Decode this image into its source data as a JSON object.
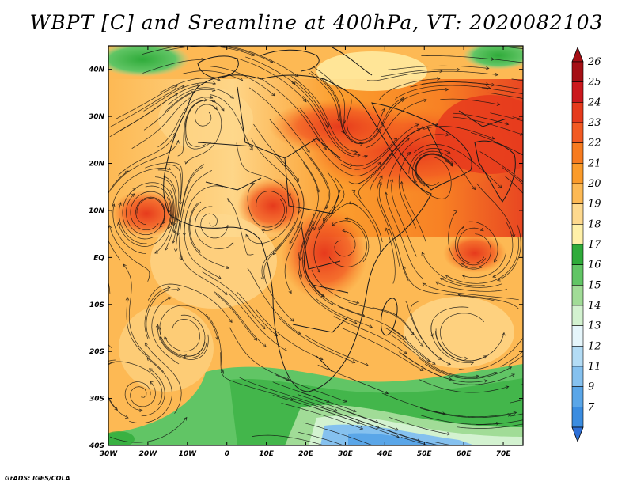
{
  "title": "WBPT [C] and Sreamline at 400hPa, VT: 2020082103",
  "credit": "GrADS: IGES/COLA",
  "map": {
    "variable": "Wet-bulb potential temperature",
    "level": "400hPa",
    "overlay": "Streamlines",
    "lon_range": [
      -30,
      75
    ],
    "lat_range": [
      -40,
      45
    ],
    "lat_ticks": [
      {
        "value": 40,
        "label": "40N"
      },
      {
        "value": 30,
        "label": "30N"
      },
      {
        "value": 20,
        "label": "20N"
      },
      {
        "value": 10,
        "label": "10N"
      },
      {
        "value": 0,
        "label": "EQ"
      },
      {
        "value": -10,
        "label": "10S"
      },
      {
        "value": -20,
        "label": "20S"
      },
      {
        "value": -30,
        "label": "30S"
      },
      {
        "value": -40,
        "label": "40S"
      }
    ],
    "lon_ticks": [
      {
        "value": -30,
        "label": "30W"
      },
      {
        "value": -20,
        "label": "20W"
      },
      {
        "value": -10,
        "label": "10W"
      },
      {
        "value": 0,
        "label": "0"
      },
      {
        "value": 10,
        "label": "10E"
      },
      {
        "value": 20,
        "label": "20E"
      },
      {
        "value": 30,
        "label": "30E"
      },
      {
        "value": 40,
        "label": "40E"
      },
      {
        "value": 50,
        "label": "50E"
      },
      {
        "value": 60,
        "label": "60E"
      },
      {
        "value": 70,
        "label": "70E"
      }
    ]
  },
  "colorbar": {
    "levels": [
      {
        "label": "26",
        "color": "#a50f15"
      },
      {
        "label": "25",
        "color": "#cb181d"
      },
      {
        "label": "24",
        "color": "#e63a1c"
      },
      {
        "label": "23",
        "color": "#f25a22"
      },
      {
        "label": "22",
        "color": "#f77b1f"
      },
      {
        "label": "21",
        "color": "#fb9b2a"
      },
      {
        "label": "20",
        "color": "#fdb954"
      },
      {
        "label": "19",
        "color": "#fed98e"
      },
      {
        "label": "18",
        "color": "#fff0a8"
      },
      {
        "label": "17",
        "color": "#2fab3a"
      },
      {
        "label": "16",
        "color": "#61c565"
      },
      {
        "label": "15",
        "color": "#a1dc97"
      },
      {
        "label": "14",
        "color": "#d3f2d0"
      },
      {
        "label": "13",
        "color": "#e6f6fb"
      },
      {
        "label": "12",
        "color": "#b3dcf5"
      },
      {
        "label": "11",
        "color": "#85c1ef"
      },
      {
        "label": "9",
        "color": "#5aa6e8"
      },
      {
        "label": "7",
        "color": "#3a8ce0"
      }
    ],
    "bottom_color": "#2d6fd6"
  }
}
